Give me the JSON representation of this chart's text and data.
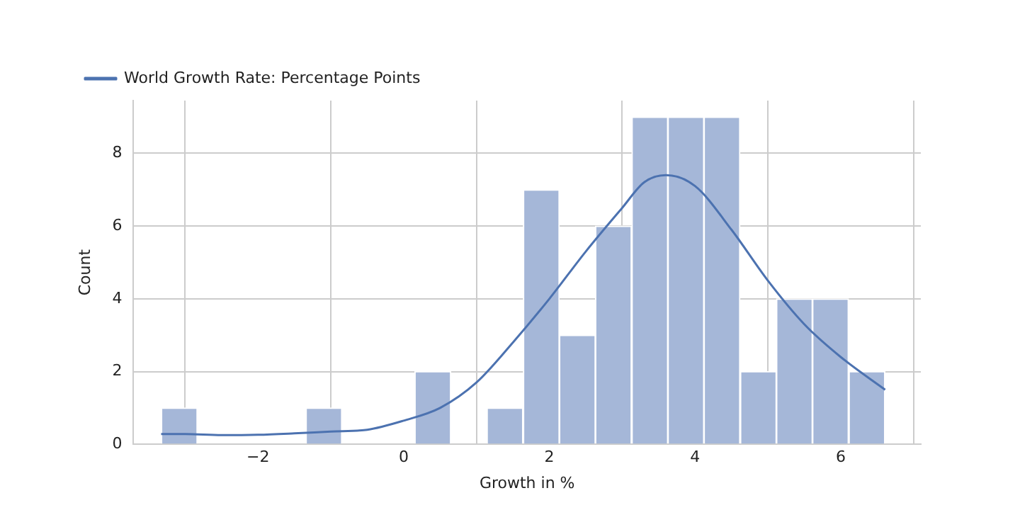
{
  "chart_data": {
    "type": "histogram",
    "xlabel": "Growth in %",
    "ylabel": "Count",
    "xlim": [
      -3.71,
      7.1
    ],
    "ylim": [
      0,
      9.45
    ],
    "xticks": [
      -2,
      0,
      2,
      4,
      6
    ],
    "yticks": [
      0,
      2,
      4,
      6,
      8
    ],
    "grid": true,
    "legend": "top left",
    "series": [
      {
        "type": "histogram",
        "color": "#a5b7d8",
        "bins": [
          -3.33,
          -2.83,
          -2.34,
          -1.84,
          -1.34,
          -0.85,
          -0.35,
          0.15,
          0.65,
          1.14,
          1.64,
          2.14,
          2.63,
          3.13,
          3.63,
          4.12,
          4.62,
          5.12,
          5.61,
          6.11,
          6.61
        ],
        "values": [
          1,
          0,
          0,
          0,
          1,
          0,
          0,
          2,
          0,
          1,
          7,
          3,
          6,
          9,
          9,
          9,
          2,
          4,
          4,
          2
        ]
      },
      {
        "type": "line",
        "name": "World Growth Rate: Percentage Points",
        "color": "#4c72b0",
        "x": [
          -3.33,
          -3,
          -2.5,
          -2,
          -1.5,
          -1,
          -0.5,
          0,
          0.5,
          1,
          1.5,
          2,
          2.5,
          3,
          3.3,
          3.6,
          4,
          4.5,
          5,
          5.5,
          6,
          6.61
        ],
        "values": [
          0.28,
          0.28,
          0.25,
          0.26,
          0.3,
          0.35,
          0.4,
          0.65,
          1.0,
          1.7,
          2.8,
          4.0,
          5.3,
          6.5,
          7.2,
          7.4,
          7.1,
          5.9,
          4.5,
          3.3,
          2.4,
          1.5
        ]
      }
    ]
  }
}
